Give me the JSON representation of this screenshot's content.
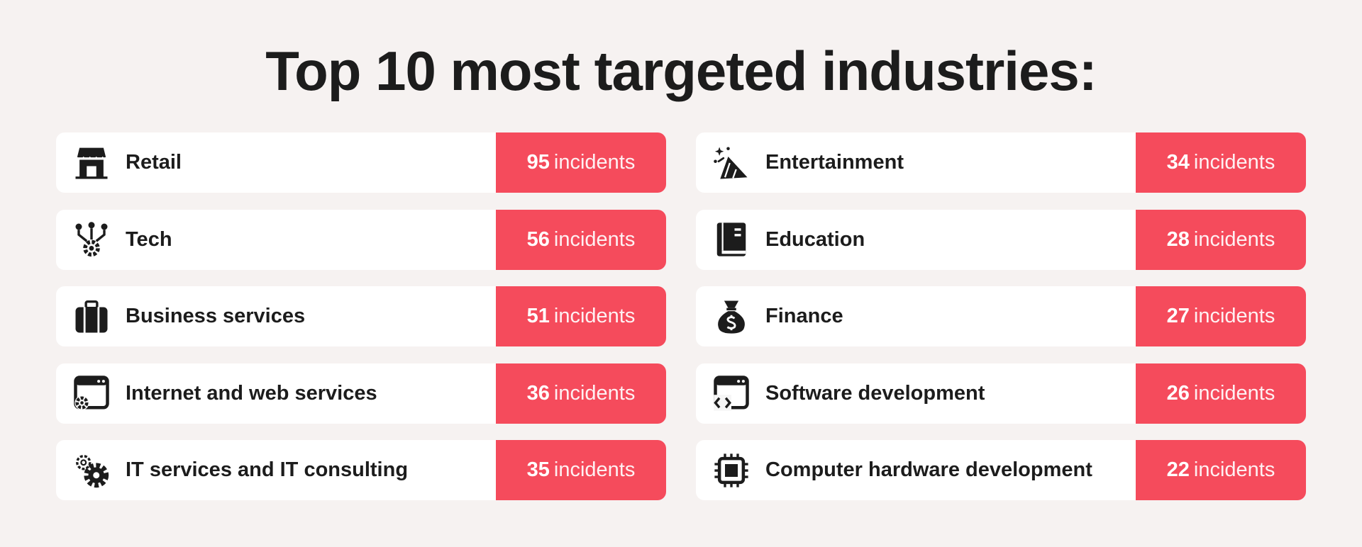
{
  "title": "Top 10 most targeted industries:",
  "chart_data": {
    "type": "table",
    "title": "Top 10 most targeted industries:",
    "unit": "incidents",
    "columns": [
      [
        {
          "name": "Retail",
          "value": 95,
          "icon": "storefront-icon"
        },
        {
          "name": "Tech",
          "value": 56,
          "icon": "circuit-gear-icon"
        },
        {
          "name": "Business services",
          "value": 51,
          "icon": "briefcase-icon"
        },
        {
          "name": "Internet and web services",
          "value": 36,
          "icon": "browser-gear-icon"
        },
        {
          "name": "IT services and IT consulting",
          "value": 35,
          "icon": "gears-icon"
        }
      ],
      [
        {
          "name": "Entertainment",
          "value": 34,
          "icon": "party-popper-icon"
        },
        {
          "name": "Education",
          "value": 28,
          "icon": "book-icon"
        },
        {
          "name": "Finance",
          "value": 27,
          "icon": "money-bag-icon"
        },
        {
          "name": "Software development",
          "value": 26,
          "icon": "browser-code-icon"
        },
        {
          "name": "Computer hardware development",
          "value": 22,
          "icon": "microchip-icon"
        }
      ]
    ]
  },
  "colors": {
    "badge": "#f54b5c",
    "background": "#f6f2f1",
    "row": "#ffffff",
    "text": "#1c1c1c"
  }
}
